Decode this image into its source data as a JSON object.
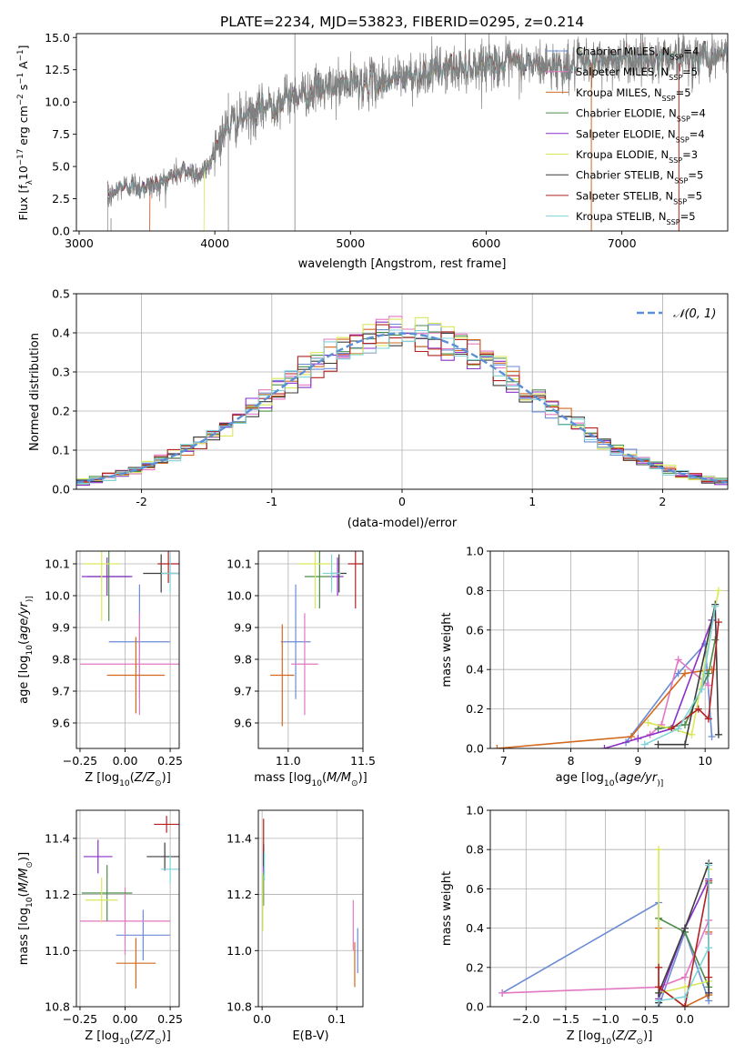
{
  "chart_data": [
    {
      "id": "spectrum",
      "type": "line",
      "title": "PLATE=2234, MJD=53823, FIBERID=0295, z=0.214",
      "xlabel": "wavelength [Angstrom, rest frame]",
      "ylabel": "Flux [f$_\\lambda$10$^{-17}$ erg cm$^{-2}$ s$^{-1}$ A$^{-1}$]",
      "ylabel_parts": [
        "Flux [f",
        "λ",
        "10",
        "−17",
        " erg cm",
        "−2",
        " s",
        "−1",
        " A",
        "−1",
        "]"
      ],
      "xlim": [
        2980,
        7780
      ],
      "ylim": [
        0,
        15.3
      ],
      "xticks": [
        3000,
        4000,
        5000,
        6000,
        7000
      ],
      "yticks": [
        0.0,
        2.5,
        5.0,
        7.5,
        10.0,
        12.5,
        15.0
      ],
      "grid": false,
      "legend_position": "top-right",
      "data_range": [
        3210,
        7780
      ],
      "continuum_points": {
        "x": [
          3210,
          3300,
          3400,
          3500,
          3600,
          3700,
          3800,
          3900,
          3950,
          4000,
          4100,
          4200,
          4300,
          4400,
          4600,
          4800,
          5000,
          5200,
          5400,
          5600,
          5800,
          6000,
          6200,
          6400,
          6600,
          6800,
          7000,
          7200,
          7400,
          7600,
          7780
        ],
        "y": [
          2.4,
          3.4,
          3.6,
          3.4,
          3.7,
          4.4,
          4.7,
          4.4,
          5.0,
          6.5,
          8.3,
          8.7,
          9.0,
          9.8,
          10.6,
          11.0,
          11.4,
          11.6,
          12.0,
          12.4,
          12.6,
          13.0,
          12.9,
          12.9,
          12.7,
          13.1,
          13.3,
          13.4,
          13.6,
          13.5,
          13.7
        ]
      },
      "noise_amplitude": 0.9,
      "series": [
        {
          "name": "Chabrier MILES",
          "nssp": "4",
          "color": "#6b8bd6"
        },
        {
          "name": "Salpeter MILES",
          "nssp": "5",
          "color": "#e377c2"
        },
        {
          "name": "Kroupa MILES",
          "nssp": "5",
          "color": "#d2691e"
        },
        {
          "name": "Chabrier ELODIE",
          "nssp": "4",
          "color": "#4a8c4a"
        },
        {
          "name": "Salpeter ELODIE",
          "nssp": "4",
          "color": "#8b2fc9"
        },
        {
          "name": "Kroupa ELODIE",
          "nssp": "3",
          "color": "#d9e85a"
        },
        {
          "name": "Chabrier STELIB",
          "nssp": "5",
          "color": "#3c3c3c"
        },
        {
          "name": "Salpeter STELIB",
          "nssp": "5",
          "color": "#b22222"
        },
        {
          "name": "Kroupa STELIB",
          "nssp": "5",
          "color": "#7fd3d8"
        }
      ],
      "data_color": "#808080",
      "legend_template": [
        "N",
        "SSP",
        "="
      ]
    },
    {
      "id": "residuals",
      "type": "line",
      "xlabel": "(data-model)/error",
      "ylabel": "Normed distribution",
      "xlim": [
        -2.5,
        2.5
      ],
      "ylim": [
        0,
        0.5
      ],
      "xticks": [
        -2,
        -1,
        0,
        1,
        2
      ],
      "yticks": [
        0.0,
        0.1,
        0.2,
        0.3,
        0.4,
        0.5
      ],
      "grid": true,
      "legend_position": "top-right",
      "reference_curve": {
        "name": "𝒩(0, 1)",
        "mean": 0,
        "std": 1,
        "style": "dashed",
        "color": "#5b8fd6"
      },
      "histogram_bin_width": 0.1
    },
    {
      "id": "age-vs-z",
      "type": "scatter",
      "xlabel": "Z [log10(Z/Z⊙)]",
      "xlabel_parts": [
        "Z [log",
        "10",
        "(",
        "Z/Z",
        "⊙",
        ")]"
      ],
      "ylabel": "age  [log10(age/yr)]",
      "ylabel_parts": [
        "age  [log",
        "10",
        "(",
        "age/yr",
        ")]"
      ],
      "xlim": [
        -0.27,
        0.3
      ],
      "ylim": [
        9.52,
        10.14
      ],
      "xticks": [
        -0.25,
        0.0,
        0.25
      ],
      "xtick_labels": [
        "−0.25",
        "0.00",
        "0.25"
      ],
      "yticks": [
        9.6,
        9.7,
        9.8,
        9.9,
        10.0,
        10.1
      ],
      "grid": true,
      "points": [
        {
          "s": 0,
          "x": 0.08,
          "xerr": 0.17,
          "y": 9.855,
          "yerr": 0.18
        },
        {
          "s": 1,
          "x": 0.08,
          "xerr": 0.33,
          "y": 9.785,
          "yerr": 0.16
        },
        {
          "s": 2,
          "x": 0.06,
          "xerr": 0.16,
          "y": 9.75,
          "yerr": 0.12
        },
        {
          "s": 3,
          "x": -0.09,
          "xerr": 0.12,
          "y": 10.06,
          "yerr": 0.14
        },
        {
          "s": 4,
          "x": -0.1,
          "xerr": 0.14,
          "y": 10.06,
          "yerr": 0.06
        },
        {
          "s": 5,
          "x": -0.13,
          "xerr": 0.1,
          "y": 10.1,
          "yerr": 0.18
        },
        {
          "s": 6,
          "x": 0.2,
          "xerr": 0.1,
          "y": 10.07,
          "yerr": 0.06
        },
        {
          "s": 7,
          "x": 0.24,
          "xerr": 0.06,
          "y": 10.1,
          "yerr": 0.06
        },
        {
          "s": 8,
          "x": 0.25,
          "xerr": 0.05,
          "y": 10.07,
          "yerr": 0.06
        }
      ]
    },
    {
      "id": "age-vs-mass",
      "type": "scatter",
      "xlabel": "mass [log10(M/M⊙)]",
      "xlabel_parts": [
        "mass [log",
        "10",
        "(",
        "M/M",
        "⊙",
        ")]"
      ],
      "xlim": [
        10.8,
        11.5
      ],
      "ylim": [
        9.52,
        10.14
      ],
      "xticks": [
        11.0,
        11.5
      ],
      "yticks": [
        9.6,
        9.7,
        9.8,
        9.9,
        10.0,
        10.1
      ],
      "grid": true,
      "points": [
        {
          "s": 0,
          "x": 11.05,
          "xerr": 0.1,
          "y": 9.855,
          "yerr": 0.18
        },
        {
          "s": 1,
          "x": 11.11,
          "xerr": 0.09,
          "y": 9.785,
          "yerr": 0.16
        },
        {
          "s": 2,
          "x": 10.96,
          "xerr": 0.08,
          "y": 9.75,
          "yerr": 0.16
        },
        {
          "s": 3,
          "x": 11.21,
          "xerr": 0.1,
          "y": 10.06,
          "yerr": 0.1
        },
        {
          "s": 4,
          "x": 11.33,
          "xerr": 0.04,
          "y": 10.06,
          "yerr": 0.06
        },
        {
          "s": 5,
          "x": 11.18,
          "xerr": 0.11,
          "y": 10.1,
          "yerr": 0.14
        },
        {
          "s": 6,
          "x": 11.34,
          "xerr": 0.05,
          "y": 10.07,
          "yerr": 0.06
        },
        {
          "s": 7,
          "x": 11.45,
          "xerr": 0.05,
          "y": 10.1,
          "yerr": 0.14
        },
        {
          "s": 8,
          "x": 11.29,
          "xerr": 0.06,
          "y": 10.07,
          "yerr": 0.06
        }
      ]
    },
    {
      "id": "mass-weight-vs-age",
      "type": "line",
      "xlabel": "age  [log10(age/yr)]",
      "xlabel_parts": [
        "age  [log",
        "10",
        "(",
        "age/yr",
        ")]"
      ],
      "ylabel": "mass weight",
      "xlim": [
        6.8,
        10.35
      ],
      "ylim": [
        0,
        1.0
      ],
      "xticks": [
        7,
        8,
        9,
        10
      ],
      "yticks": [
        0.0,
        0.2,
        0.4,
        0.6,
        0.8,
        1.0
      ],
      "grid": true,
      "series": [
        {
          "s": 0,
          "x": [
            8.82,
            9.6,
            10.0,
            10.1
          ],
          "y": [
            0.03,
            0.38,
            0.53,
            0.06
          ]
        },
        {
          "s": 1,
          "x": [
            9.18,
            9.35,
            9.6,
            10.05
          ],
          "y": [
            0.07,
            0.12,
            0.45,
            0.32
          ]
        },
        {
          "s": 2,
          "x": [
            6.9,
            8.9,
            9.7,
            10.1
          ],
          "y": [
            0.0,
            0.06,
            0.38,
            0.4
          ]
        },
        {
          "s": 3,
          "x": [
            9.3,
            9.7,
            10.05,
            10.15
          ],
          "y": [
            0.1,
            0.12,
            0.38,
            0.55
          ]
        },
        {
          "s": 4,
          "x": [
            8.5,
            9.0,
            9.5,
            10.1
          ],
          "y": [
            0.0,
            0.05,
            0.1,
            0.65
          ]
        },
        {
          "s": 5,
          "x": [
            9.15,
            9.5,
            9.8,
            10.2
          ],
          "y": [
            0.13,
            0.1,
            0.07,
            0.8
          ]
        },
        {
          "s": 6,
          "x": [
            9.3,
            9.7,
            10.15,
            10.2
          ],
          "y": [
            0.02,
            0.02,
            0.73,
            0.07
          ]
        },
        {
          "s": 7,
          "x": [
            9.5,
            9.9,
            10.05,
            10.2
          ],
          "y": [
            0.1,
            0.2,
            0.15,
            0.64
          ]
        },
        {
          "s": 8,
          "x": [
            9.1,
            9.6,
            9.95,
            10.15
          ],
          "y": [
            0.02,
            0.1,
            0.3,
            0.72
          ]
        }
      ]
    },
    {
      "id": "mass-vs-z",
      "type": "scatter",
      "xlabel": "Z [log10(Z/Z⊙)]",
      "xlabel_parts": [
        "Z [log",
        "10",
        "(",
        "Z/Z",
        "⊙",
        ")]"
      ],
      "ylabel": "mass [log10(M/M⊙)]",
      "ylabel_parts": [
        "mass [log",
        "10",
        "(",
        "M/M",
        "⊙",
        ")]"
      ],
      "xlim": [
        -0.27,
        0.3
      ],
      "ylim": [
        10.8,
        11.5
      ],
      "xticks": [
        -0.25,
        0.0,
        0.25
      ],
      "xtick_labels": [
        "−0.25",
        "0.00",
        "0.25"
      ],
      "yticks": [
        10.8,
        11.0,
        11.2,
        11.4
      ],
      "grid": true,
      "points": [
        {
          "s": 0,
          "x": 0.1,
          "xerr": 0.15,
          "y": 11.055,
          "yerr": 0.09
        },
        {
          "s": 1,
          "x": 0.0,
          "xerr": 0.25,
          "y": 11.105,
          "yerr": 0.12
        },
        {
          "s": 2,
          "x": 0.06,
          "xerr": 0.11,
          "y": 10.955,
          "yerr": 0.09
        },
        {
          "s": 3,
          "x": -0.1,
          "xerr": 0.14,
          "y": 11.205,
          "yerr": 0.1
        },
        {
          "s": 4,
          "x": -0.15,
          "xerr": 0.08,
          "y": 11.335,
          "yerr": 0.06
        },
        {
          "s": 5,
          "x": -0.13,
          "xerr": 0.09,
          "y": 11.18,
          "yerr": 0.08
        },
        {
          "s": 6,
          "x": 0.22,
          "xerr": 0.1,
          "y": 11.335,
          "yerr": 0.05
        },
        {
          "s": 7,
          "x": 0.23,
          "xerr": 0.07,
          "y": 11.45,
          "yerr": 0.03
        },
        {
          "s": 8,
          "x": 0.25,
          "xerr": 0.05,
          "y": 11.29,
          "yerr": 0.05
        }
      ]
    },
    {
      "id": "mass-vs-ebv",
      "type": "scatter",
      "xlabel": "E(B-V)",
      "xlim": [
        -0.005,
        0.135
      ],
      "ylim": [
        10.8,
        11.5
      ],
      "xticks": [
        0.0,
        0.1
      ],
      "xtick_labels": [
        "0.0",
        "0.1"
      ],
      "yticks": [
        10.8,
        11.0,
        11.2,
        11.4
      ],
      "grid": true,
      "points": [
        {
          "s": 0,
          "x": 0.128,
          "xerr": 0,
          "y": 11.0,
          "yerr": 0.08
        },
        {
          "s": 1,
          "x": 0.122,
          "xerr": 0,
          "y": 11.09,
          "yerr": 0.09
        },
        {
          "s": 2,
          "x": 0.124,
          "xerr": 0,
          "y": 10.95,
          "yerr": 0.08
        },
        {
          "s": 3,
          "x": 0.002,
          "xerr": 0,
          "y": 11.22,
          "yerr": 0.06
        },
        {
          "s": 4,
          "x": 0.002,
          "xerr": 0,
          "y": 11.32,
          "yerr": 0.04
        },
        {
          "s": 5,
          "x": 0.001,
          "xerr": 0,
          "y": 11.17,
          "yerr": 0.1
        },
        {
          "s": 6,
          "x": 0.002,
          "xerr": 0,
          "y": 11.34,
          "yerr": 0.04
        },
        {
          "s": 7,
          "x": 0.002,
          "xerr": 0,
          "y": 11.41,
          "yerr": 0.06
        },
        {
          "s": 8,
          "x": 0.003,
          "xerr": 0,
          "y": 11.3,
          "yerr": 0.05
        }
      ]
    },
    {
      "id": "mass-weight-vs-z",
      "type": "line",
      "xlabel": "Z [log10(Z/Z⊙)]",
      "xlabel_parts": [
        "Z [log",
        "10",
        "(",
        "Z/Z",
        "⊙",
        ")]"
      ],
      "ylabel": "mass weight",
      "xlim": [
        -2.45,
        0.55
      ],
      "ylim": [
        0,
        1.0
      ],
      "xticks": [
        -2.0,
        -1.5,
        -1.0,
        -0.5,
        0.0
      ],
      "xtick_labels": [
        "−2.0",
        "−1.5",
        "−1.0",
        "−0.5",
        "0.0"
      ],
      "yticks": [
        0.0,
        0.2,
        0.4,
        0.6,
        0.8,
        1.0
      ],
      "grid": true,
      "series": [
        {
          "s": 0,
          "x": [
            -2.3,
            -0.33,
            -0.33,
            0.0,
            0.3
          ],
          "y": [
            0.07,
            0.53,
            0.0,
            0.38,
            0.03
          ]
        },
        {
          "s": 1,
          "x": [
            -2.3,
            -0.33,
            0.0,
            0.3,
            0.3
          ],
          "y": [
            0.07,
            0.1,
            0.15,
            0.44,
            0.37
          ]
        },
        {
          "s": 2,
          "x": [
            -0.33,
            -0.33,
            0.0,
            0.3,
            0.3
          ],
          "y": [
            0.4,
            0.1,
            0.0,
            0.06,
            0.38
          ]
        },
        {
          "s": 3,
          "x": [
            -0.33,
            0.0,
            0.3,
            0.3
          ],
          "y": [
            0.45,
            0.38,
            0.1,
            0.63
          ]
        },
        {
          "s": 4,
          "x": [
            -0.33,
            0.0,
            0.3,
            0.3
          ],
          "y": [
            0.04,
            0.4,
            0.65,
            0.07
          ]
        },
        {
          "s": 5,
          "x": [
            -0.33,
            -0.33,
            0.0,
            0.3,
            0.3
          ],
          "y": [
            0.8,
            0.07,
            0.1,
            0.13,
            0.7
          ]
        },
        {
          "s": 6,
          "x": [
            -0.33,
            -0.33,
            0.0,
            0.3,
            0.3
          ],
          "y": [
            0.02,
            0.07,
            0.4,
            0.73,
            0.07
          ]
        },
        {
          "s": 7,
          "x": [
            -0.33,
            -0.33,
            0.0,
            0.3,
            0.3
          ],
          "y": [
            0.2,
            0.1,
            0.0,
            0.64,
            0.15
          ]
        },
        {
          "s": 8,
          "x": [
            -0.33,
            0.0,
            0.3,
            0.3
          ],
          "y": [
            0.03,
            0.05,
            0.3,
            0.72
          ]
        }
      ]
    }
  ]
}
